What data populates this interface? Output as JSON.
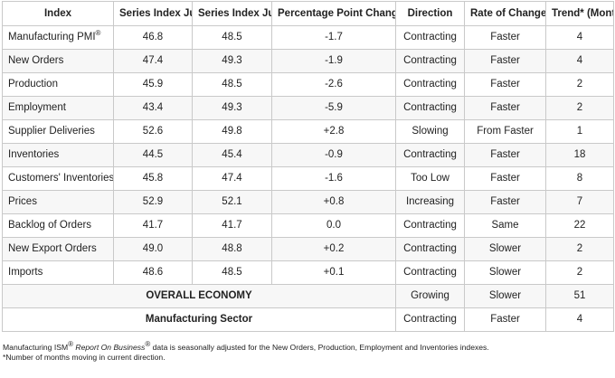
{
  "table": {
    "headers": {
      "index": "Index",
      "jul": "Series Index Jul",
      "jun": "Series Index Jun",
      "change": "Percentage Point Change",
      "direction": "Direction",
      "rate": "Rate of Change",
      "trend": "Trend* (Months)"
    },
    "rows": [
      {
        "index": "Manufacturing PMI",
        "sup": "®",
        "jul": "46.8",
        "jun": "48.5",
        "change": "-1.7",
        "direction": "Contracting",
        "rate": "Faster",
        "trend": "4"
      },
      {
        "index": "New Orders",
        "jul": "47.4",
        "jun": "49.3",
        "change": "-1.9",
        "direction": "Contracting",
        "rate": "Faster",
        "trend": "4"
      },
      {
        "index": "Production",
        "jul": "45.9",
        "jun": "48.5",
        "change": "-2.6",
        "direction": "Contracting",
        "rate": "Faster",
        "trend": "2"
      },
      {
        "index": "Employment",
        "jul": "43.4",
        "jun": "49.3",
        "change": "-5.9",
        "direction": "Contracting",
        "rate": "Faster",
        "trend": "2"
      },
      {
        "index": "Supplier Deliveries",
        "jul": "52.6",
        "jun": "49.8",
        "change": "+2.8",
        "direction": "Slowing",
        "rate": "From Faster",
        "trend": "1"
      },
      {
        "index": "Inventories",
        "jul": "44.5",
        "jun": "45.4",
        "change": "-0.9",
        "direction": "Contracting",
        "rate": "Faster",
        "trend": "18"
      },
      {
        "index": "Customers' Inventories",
        "jul": "45.8",
        "jun": "47.4",
        "change": "-1.6",
        "direction": "Too Low",
        "rate": "Faster",
        "trend": "8"
      },
      {
        "index": "Prices",
        "jul": "52.9",
        "jun": "52.1",
        "change": "+0.8",
        "direction": "Increasing",
        "rate": "Faster",
        "trend": "7"
      },
      {
        "index": "Backlog of Orders",
        "jul": "41.7",
        "jun": "41.7",
        "change": "0.0",
        "direction": "Contracting",
        "rate": "Same",
        "trend": "22"
      },
      {
        "index": "New Export Orders",
        "jul": "49.0",
        "jun": "48.8",
        "change": "+0.2",
        "direction": "Contracting",
        "rate": "Slower",
        "trend": "2"
      },
      {
        "index": "Imports",
        "jul": "48.6",
        "jun": "48.5",
        "change": "+0.1",
        "direction": "Contracting",
        "rate": "Slower",
        "trend": "2"
      }
    ],
    "summary": [
      {
        "label": "OVERALL ECONOMY",
        "direction": "Growing",
        "rate": "Slower",
        "trend": "51"
      },
      {
        "label": "Manufacturing Sector",
        "direction": "Contracting",
        "rate": "Faster",
        "trend": "4"
      }
    ]
  },
  "notes": {
    "line1_a": "Manufacturing ISM",
    "line1_sup1": "®",
    "line1_b": "Report On Business",
    "line1_sup2": "®",
    "line1_c": "data is seasonally adjusted for the New Orders, Production, Employment and Inventories indexes.",
    "line2": "*Number of months moving in current direction."
  }
}
